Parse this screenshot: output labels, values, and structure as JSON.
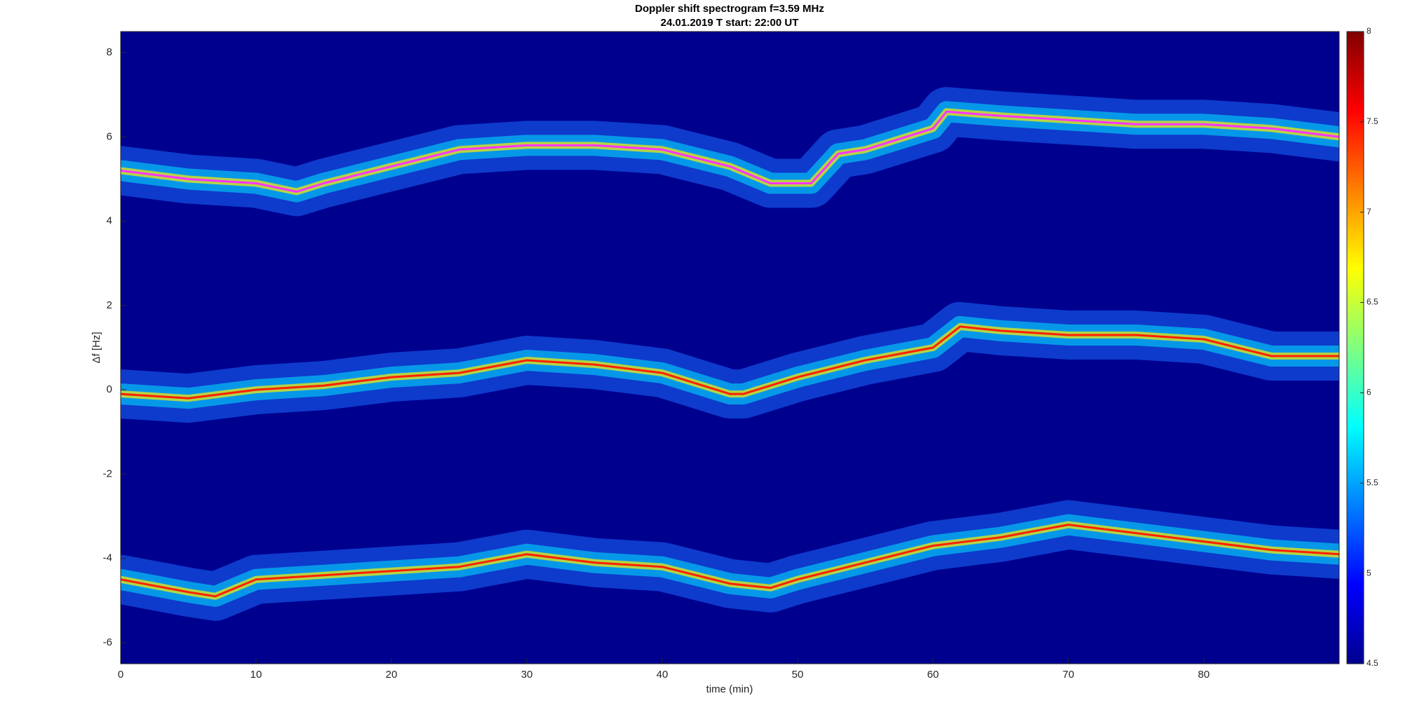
{
  "chart_data": {
    "type": "spectrogram",
    "title": "Doppler shift spectrogram f=3.59 MHz",
    "subtitle": "24.01.2019   T start: 22:00 UT",
    "xlabel": "time (min)",
    "ylabel": "Δf [Hz]",
    "xlim": [
      0,
      90
    ],
    "xticks": [
      0,
      10,
      20,
      30,
      40,
      50,
      60,
      70,
      80
    ],
    "ylim": [
      -6.5,
      8.5
    ],
    "yticks": [
      -6,
      -4,
      -2,
      0,
      2,
      4,
      6,
      8
    ],
    "colormap": "jet",
    "background": "#00008f",
    "clim": [
      4.5,
      8
    ],
    "cticks": [
      4.5,
      5,
      5.5,
      6,
      6.5,
      7,
      7.5,
      8
    ],
    "series": [
      {
        "color": "#ff33ff",
        "x": [
          0,
          5,
          10,
          13,
          15,
          20,
          25,
          30,
          35,
          40,
          45,
          48,
          51,
          53,
          55,
          60,
          61,
          65,
          70,
          75,
          80,
          85,
          90
        ],
        "values": [
          5.2,
          5.0,
          4.9,
          4.7,
          4.9,
          5.3,
          5.7,
          5.8,
          5.8,
          5.7,
          5.3,
          4.9,
          4.9,
          5.6,
          5.7,
          6.2,
          6.6,
          6.5,
          6.4,
          6.3,
          6.3,
          6.2,
          6.0
        ]
      },
      {
        "color": "#ff2000",
        "x": [
          0,
          5,
          10,
          15,
          20,
          25,
          30,
          35,
          40,
          45,
          46,
          50,
          55,
          60,
          62,
          65,
          70,
          75,
          80,
          85,
          90
        ],
        "values": [
          -0.1,
          -0.2,
          0,
          0.1,
          0.3,
          0.4,
          0.7,
          0.6,
          0.4,
          -0.1,
          -0.1,
          0.3,
          0.7,
          1.0,
          1.5,
          1.4,
          1.3,
          1.3,
          1.2,
          0.8,
          0.8
        ]
      },
      {
        "color": "#ff2000",
        "x": [
          0,
          5,
          7,
          10,
          15,
          20,
          25,
          30,
          35,
          40,
          45,
          48,
          50,
          55,
          60,
          65,
          70,
          75,
          80,
          85,
          90
        ],
        "values": [
          -4.5,
          -4.8,
          -4.9,
          -4.5,
          -4.4,
          -4.3,
          -4.2,
          -3.9,
          -4.1,
          -4.2,
          -4.6,
          -4.7,
          -4.5,
          -4.1,
          -3.7,
          -3.5,
          -3.2,
          -3.4,
          -3.6,
          -3.8,
          -3.9
        ]
      }
    ]
  }
}
